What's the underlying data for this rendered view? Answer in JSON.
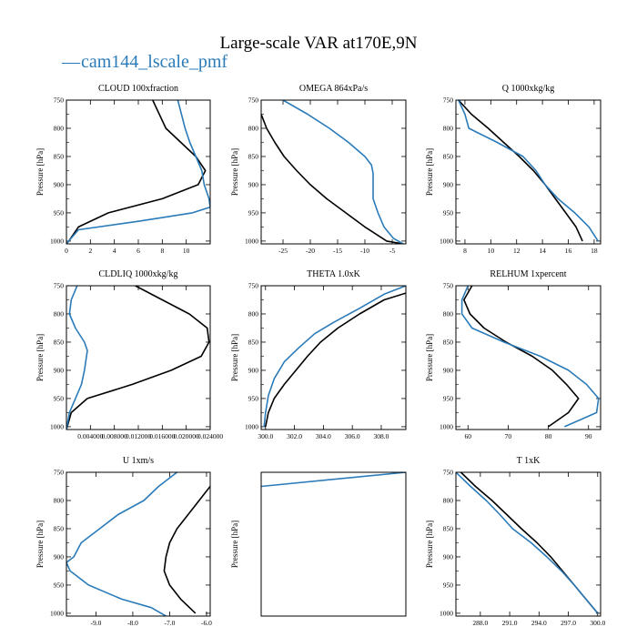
{
  "figure": {
    "title": "Large-scale VAR at170E,9N",
    "legend": [
      {
        "name": "cam144_lscale_pmf",
        "color": "#2b7bb9",
        "marker": "—"
      }
    ]
  },
  "colors": {
    "black_series": "#000000",
    "blue_series": "#2b7bb9"
  },
  "chart_data": [
    {
      "type": "line",
      "title": "CLOUD 100xfraction",
      "ylabel": "Pressure [hPa]",
      "xlim": [
        0,
        12
      ],
      "ylim": [
        1005,
        750
      ],
      "y_inverted": true,
      "xticks": [
        "0",
        "2",
        "4",
        "6",
        "8",
        "10"
      ],
      "xtick_values": [
        0,
        2,
        4,
        6,
        8,
        10
      ],
      "yticks": [
        "750",
        "800",
        "850",
        "900",
        "950",
        "1000"
      ],
      "series": [
        {
          "color": "black",
          "points": [
            [
              7.2,
              750
            ],
            [
              8.3,
              800
            ],
            [
              10.8,
              850
            ],
            [
              11.6,
              875
            ],
            [
              11.0,
              900
            ],
            [
              8.0,
              925
            ],
            [
              3.5,
              950
            ],
            [
              1.0,
              975
            ],
            [
              0.2,
              1000
            ],
            [
              0,
              1005
            ]
          ]
        },
        {
          "color": "blue",
          "points": [
            [
              9.3,
              750
            ],
            [
              9.6,
              775
            ],
            [
              9.9,
              800
            ],
            [
              10.3,
              825
            ],
            [
              10.8,
              850
            ],
            [
              11.3,
              875
            ],
            [
              11.5,
              900
            ],
            [
              11.9,
              925
            ],
            [
              12.0,
              940
            ],
            [
              10.5,
              950
            ],
            [
              6.0,
              965
            ],
            [
              1.0,
              980
            ],
            [
              0.2,
              1000
            ],
            [
              0,
              1005
            ]
          ]
        }
      ]
    },
    {
      "type": "line",
      "title": "OMEGA 864xPa/s",
      "ylabel": "Pressure [hPa]",
      "xlim": [
        -29,
        -2.5
      ],
      "ylim": [
        1005,
        750
      ],
      "y_inverted": true,
      "xticks": [
        "-25",
        "-20",
        "-15",
        "-10",
        "-5"
      ],
      "xtick_values": [
        -25,
        -20,
        -15,
        -10,
        -5
      ],
      "yticks": [
        "750",
        "800",
        "850",
        "900",
        "950",
        "1000"
      ],
      "series": [
        {
          "color": "black",
          "points": [
            [
              -29,
              775
            ],
            [
              -28,
              800
            ],
            [
              -26.5,
              825
            ],
            [
              -24.8,
              850
            ],
            [
              -22.5,
              875
            ],
            [
              -20,
              900
            ],
            [
              -17,
              925
            ],
            [
              -13.5,
              950
            ],
            [
              -10,
              975
            ],
            [
              -6,
              1000
            ],
            [
              -3,
              1005
            ]
          ]
        },
        {
          "color": "blue",
          "points": [
            [
              -25,
              750
            ],
            [
              -20.5,
              775
            ],
            [
              -16.5,
              800
            ],
            [
              -13,
              825
            ],
            [
              -10,
              850
            ],
            [
              -8.8,
              865
            ],
            [
              -8.5,
              880
            ],
            [
              -8.5,
              925
            ],
            [
              -7.6,
              950
            ],
            [
              -6.5,
              975
            ],
            [
              -4.8,
              995
            ],
            [
              -3,
              1005
            ]
          ]
        }
      ]
    },
    {
      "type": "line",
      "title": "Q 1000xkg/kg",
      "ylabel": "Pressure [hPa]",
      "xlim": [
        7.3,
        18.5
      ],
      "ylim": [
        1005,
        750
      ],
      "y_inverted": true,
      "xticks": [
        "8",
        "10",
        "12",
        "14",
        "16",
        "18"
      ],
      "xtick_values": [
        8,
        10,
        12,
        14,
        16,
        18
      ],
      "yticks": [
        "750",
        "800",
        "850",
        "900",
        "950",
        "1000"
      ],
      "series": [
        {
          "color": "black",
          "points": [
            [
              7.5,
              750
            ],
            [
              8.5,
              775
            ],
            [
              9.8,
              800
            ],
            [
              11.0,
              825
            ],
            [
              12.2,
              850
            ],
            [
              13.3,
              875
            ],
            [
              14.2,
              900
            ],
            [
              15.0,
              925
            ],
            [
              15.8,
              950
            ],
            [
              16.6,
              975
            ],
            [
              17.1,
              1000
            ]
          ]
        },
        {
          "color": "blue",
          "points": [
            [
              7.5,
              750
            ],
            [
              8.0,
              775
            ],
            [
              8.3,
              800
            ],
            [
              10.5,
              825
            ],
            [
              12.5,
              850
            ],
            [
              13.5,
              875
            ],
            [
              14.2,
              900
            ],
            [
              15.2,
              925
            ],
            [
              16.5,
              950
            ],
            [
              17.6,
              975
            ],
            [
              18.3,
              1000
            ]
          ]
        }
      ]
    },
    {
      "type": "line",
      "title": "CLDLIQ 1000xkg/kg",
      "ylabel": "Pressure [hPa]",
      "xlim": [
        0,
        0.024
      ],
      "ylim": [
        1005,
        750
      ],
      "y_inverted": true,
      "xticks": [
        "0.004000",
        "0.008000",
        "0.012000",
        "0.016000",
        "0.020000",
        "0.024000"
      ],
      "xtick_values": [
        0.004,
        0.008,
        0.012,
        0.016,
        0.02,
        0.024
      ],
      "yticks": [
        "750",
        "800",
        "850",
        "900",
        "950",
        "1000"
      ],
      "series": [
        {
          "color": "black",
          "points": [
            [
              0.0115,
              750
            ],
            [
              0.016,
              775
            ],
            [
              0.0205,
              800
            ],
            [
              0.0235,
              825
            ],
            [
              0.0238,
              850
            ],
            [
              0.0225,
              875
            ],
            [
              0.0175,
              900
            ],
            [
              0.011,
              925
            ],
            [
              0.0035,
              950
            ],
            [
              0.0008,
              975
            ],
            [
              0,
              1005
            ]
          ]
        },
        {
          "color": "blue",
          "points": [
            [
              0.0018,
              750
            ],
            [
              0.0008,
              775
            ],
            [
              0.0005,
              800
            ],
            [
              0.0015,
              825
            ],
            [
              0.003,
              850
            ],
            [
              0.0035,
              865
            ],
            [
              0.003,
              900
            ],
            [
              0.0025,
              925
            ],
            [
              0.0015,
              950
            ],
            [
              0.0005,
              975
            ],
            [
              0,
              1005
            ]
          ]
        }
      ]
    },
    {
      "type": "line",
      "title": "THETA 1.0xK",
      "ylabel": "Pressure [hPa]",
      "xlim": [
        299.7,
        309.7
      ],
      "ylim": [
        1005,
        750
      ],
      "y_inverted": true,
      "xticks": [
        "300.0",
        "302.0",
        "304.0",
        "306.0",
        "308.0"
      ],
      "xtick_values": [
        300,
        302,
        304,
        306,
        308
      ],
      "yticks": [
        "750",
        "800",
        "850",
        "900",
        "950",
        "1000"
      ],
      "series": [
        {
          "color": "black",
          "points": [
            [
              309.7,
              763
            ],
            [
              308.2,
              775
            ],
            [
              306.5,
              800
            ],
            [
              305.0,
              825
            ],
            [
              303.8,
              850
            ],
            [
              302.9,
              875
            ],
            [
              302.1,
              900
            ],
            [
              301.3,
              925
            ],
            [
              300.6,
              950
            ],
            [
              300.2,
              975
            ],
            [
              300.0,
              1000
            ]
          ]
        },
        {
          "color": "blue",
          "points": [
            [
              309.7,
              750
            ],
            [
              308.2,
              765
            ],
            [
              306.5,
              790
            ],
            [
              304.7,
              815
            ],
            [
              303.4,
              835
            ],
            [
              302.3,
              860
            ],
            [
              301.3,
              885
            ],
            [
              300.6,
              915
            ],
            [
              300.2,
              945
            ],
            [
              300.0,
              975
            ],
            [
              299.9,
              1000
            ]
          ]
        }
      ]
    },
    {
      "type": "line",
      "title": "RELHUM 1xpercent",
      "ylabel": "Pressure [hPa]",
      "xlim": [
        57,
        93
      ],
      "ylim": [
        1005,
        750
      ],
      "y_inverted": true,
      "xticks": [
        "60",
        "70",
        "80",
        "90"
      ],
      "xtick_values": [
        60,
        70,
        80,
        90
      ],
      "yticks": [
        "750",
        "800",
        "850",
        "900",
        "950",
        "1000"
      ],
      "series": [
        {
          "color": "black",
          "points": [
            [
              61,
              750
            ],
            [
              59,
              775
            ],
            [
              60.5,
              800
            ],
            [
              64,
              825
            ],
            [
              69.5,
              850
            ],
            [
              76,
              875
            ],
            [
              81,
              900
            ],
            [
              84.5,
              925
            ],
            [
              87.5,
              950
            ],
            [
              85,
              975
            ],
            [
              80,
              1000
            ]
          ]
        },
        {
          "color": "blue",
          "points": [
            [
              60,
              750
            ],
            [
              58.5,
              775
            ],
            [
              58.5,
              800
            ],
            [
              61,
              825
            ],
            [
              69,
              850
            ],
            [
              78,
              875
            ],
            [
              85,
              900
            ],
            [
              89.5,
              925
            ],
            [
              92.5,
              950
            ],
            [
              92,
              975
            ],
            [
              84,
              1000
            ]
          ]
        }
      ]
    },
    {
      "type": "line",
      "title": "U 1xm/s",
      "ylabel": "Pressure [hPa]",
      "xlim": [
        -9.8,
        -5.9
      ],
      "ylim": [
        1005,
        750
      ],
      "y_inverted": true,
      "xticks": [
        "-9.0",
        "-8.0",
        "-7.0",
        "-6.0"
      ],
      "xtick_values": [
        -9,
        -8,
        -7,
        -6
      ],
      "yticks": [
        "750",
        "800",
        "850",
        "900",
        "950",
        "1000"
      ],
      "series": [
        {
          "color": "black",
          "points": [
            [
              -5.9,
              775
            ],
            [
              -6.2,
              800
            ],
            [
              -6.5,
              825
            ],
            [
              -6.8,
              850
            ],
            [
              -7.0,
              875
            ],
            [
              -7.1,
              900
            ],
            [
              -7.15,
              925
            ],
            [
              -7.0,
              950
            ],
            [
              -6.7,
              975
            ],
            [
              -6.3,
              1000
            ]
          ]
        },
        {
          "color": "blue",
          "points": [
            [
              -6.8,
              750
            ],
            [
              -7.3,
              775
            ],
            [
              -7.7,
              800
            ],
            [
              -8.4,
              825
            ],
            [
              -8.9,
              850
            ],
            [
              -9.4,
              875
            ],
            [
              -9.6,
              900
            ],
            [
              -9.8,
              910
            ],
            [
              -9.7,
              925
            ],
            [
              -9.2,
              950
            ],
            [
              -8.3,
              975
            ],
            [
              -7.5,
              990
            ],
            [
              -7.1,
              1005
            ]
          ]
        }
      ]
    },
    {
      "type": "line",
      "title": "",
      "ylabel": "Pressure [hPa]",
      "xlim": [
        0,
        1
      ],
      "ylim": [
        1005,
        750
      ],
      "y_inverted": true,
      "xticks": [],
      "xtick_values": [],
      "yticks": [],
      "series": [
        {
          "color": "blue",
          "points": [
            [
              0,
              775
            ],
            [
              1,
              750
            ]
          ]
        }
      ]
    },
    {
      "type": "line",
      "title": "T 1xK",
      "ylabel": "Pressure [hPa]",
      "xlim": [
        285.5,
        300.3
      ],
      "ylim": [
        1005,
        750
      ],
      "y_inverted": true,
      "xticks": [
        "288.0",
        "291.0",
        "294.0",
        "297.0",
        "300.0"
      ],
      "xtick_values": [
        288,
        291,
        294,
        297,
        300
      ],
      "yticks": [
        "750",
        "800",
        "850",
        "900",
        "950",
        "1000"
      ],
      "series": [
        {
          "color": "black",
          "points": [
            [
              286.0,
              750
            ],
            [
              287.5,
              775
            ],
            [
              289.2,
              800
            ],
            [
              290.7,
              825
            ],
            [
              292.2,
              850
            ],
            [
              293.8,
              875
            ],
            [
              295.2,
              900
            ],
            [
              296.4,
              925
            ],
            [
              297.6,
              950
            ],
            [
              298.8,
              975
            ],
            [
              300.0,
              1000
            ]
          ]
        },
        {
          "color": "blue",
          "points": [
            [
              285.5,
              750
            ],
            [
              287.0,
              775
            ],
            [
              288.6,
              800
            ],
            [
              290.0,
              825
            ],
            [
              291.3,
              850
            ],
            [
              293.2,
              875
            ],
            [
              294.8,
              900
            ],
            [
              296.3,
              925
            ],
            [
              297.6,
              950
            ],
            [
              298.8,
              975
            ],
            [
              300.0,
              1000
            ]
          ]
        }
      ]
    }
  ]
}
